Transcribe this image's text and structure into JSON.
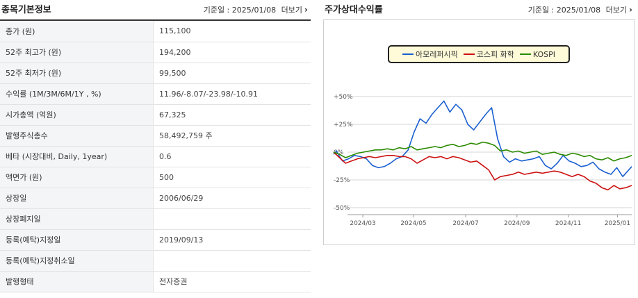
{
  "left_panel": {
    "title": "종목기본정보",
    "base_date_label": "기준일 : 2025/01/08",
    "more_label": "더보기",
    "rows": [
      {
        "label": "종가 (원)",
        "value": "115,100"
      },
      {
        "label": "52주 최고가 (원)",
        "value": "194,200"
      },
      {
        "label": "52주 최저가 (원)",
        "value": "99,500"
      },
      {
        "label": "수익률 (1M/3M/6M/1Y , %)",
        "value": "11.96/-8.07/-23.98/-10.91"
      },
      {
        "label": "시가총액 (억원)",
        "value": "67,325"
      },
      {
        "label": "발행주식총수",
        "value": "58,492,759 주"
      },
      {
        "label": "베타 (시장대비, Daily, 1year)",
        "value": "0.6"
      },
      {
        "label": "액면가 (원)",
        "value": "500"
      },
      {
        "label": "상장일",
        "value": "2006/06/29"
      },
      {
        "label": "상장폐지일",
        "value": ""
      },
      {
        "label": "등록(예탁)지정일",
        "value": "2019/09/13"
      },
      {
        "label": "등록(예탁)지정취소일",
        "value": ""
      },
      {
        "label": "발행형태",
        "value": "전자증권"
      }
    ]
  },
  "right_panel": {
    "title": "주가상대수익률",
    "base_date_label": "기준일 : 2025/01/08",
    "more_label": "더보기"
  },
  "chart_data": {
    "type": "line",
    "ylim": [
      -50,
      50
    ],
    "y_ticks": [
      50,
      25,
      0,
      -25,
      -50
    ],
    "y_tick_labels": [
      "+50%",
      "+25%",
      "0%",
      "-25%",
      "-50%"
    ],
    "x_tick_labels": [
      "2024/03",
      "2024/05",
      "2024/07",
      "2024/09",
      "2024/11",
      "2025/01"
    ],
    "x_tick_positions": [
      0.098,
      0.268,
      0.443,
      0.615,
      0.787,
      0.952
    ],
    "legend_position": "top-center",
    "series": [
      {
        "name": "아모레퍼시픽",
        "color": "#1a5fd0",
        "x": [
          0,
          0.01,
          0.02,
          0.03,
          0.05,
          0.07,
          0.09,
          0.11,
          0.13,
          0.15,
          0.17,
          0.19,
          0.21,
          0.23,
          0.25,
          0.27,
          0.29,
          0.31,
          0.33,
          0.35,
          0.37,
          0.39,
          0.41,
          0.43,
          0.45,
          0.47,
          0.49,
          0.51,
          0.53,
          0.55,
          0.57,
          0.59,
          0.61,
          0.63,
          0.65,
          0.67,
          0.69,
          0.71,
          0.73,
          0.75,
          0.77,
          0.79,
          0.81,
          0.83,
          0.85,
          0.87,
          0.89,
          0.91,
          0.93,
          0.95,
          0.97,
          1.0
        ],
        "y": [
          -2,
          1,
          -4,
          -8,
          -6,
          -3,
          -4,
          -6,
          -12,
          -14,
          -13,
          -10,
          -6,
          -4,
          2,
          18,
          30,
          26,
          34,
          40,
          46,
          36,
          43,
          38,
          25,
          20,
          27,
          34,
          40,
          12,
          -4,
          -9,
          -6,
          -8,
          -7,
          -6,
          -4,
          -12,
          -15,
          -10,
          -3,
          -8,
          -10,
          -13,
          -12,
          -9,
          -15,
          -18,
          -20,
          -14,
          -22,
          -13
        ]
      },
      {
        "name": "코스피 화학",
        "color": "#cc1111",
        "x": [
          0,
          0.02,
          0.04,
          0.06,
          0.08,
          0.1,
          0.12,
          0.14,
          0.16,
          0.18,
          0.2,
          0.22,
          0.24,
          0.26,
          0.28,
          0.3,
          0.32,
          0.34,
          0.36,
          0.38,
          0.4,
          0.42,
          0.44,
          0.46,
          0.48,
          0.5,
          0.52,
          0.54,
          0.56,
          0.58,
          0.6,
          0.62,
          0.64,
          0.66,
          0.68,
          0.7,
          0.72,
          0.74,
          0.76,
          0.78,
          0.8,
          0.82,
          0.84,
          0.86,
          0.88,
          0.9,
          0.92,
          0.94,
          0.96,
          0.98,
          1.0
        ],
        "y": [
          0,
          -5,
          -10,
          -8,
          -6,
          -5,
          -4,
          -5,
          -4,
          -3,
          -3,
          -4,
          -4,
          -6,
          -10,
          -7,
          -4,
          -5,
          -4,
          -6,
          -4,
          -5,
          -7,
          -9,
          -8,
          -12,
          -16,
          -25,
          -22,
          -21,
          -20,
          -18,
          -20,
          -19,
          -18,
          -19,
          -18,
          -17,
          -18,
          -20,
          -22,
          -20,
          -22,
          -26,
          -28,
          -32,
          -34,
          -30,
          -33,
          -32,
          -30
        ]
      },
      {
        "name": "KOSPI",
        "color": "#2a8a00",
        "x": [
          0,
          0.02,
          0.04,
          0.06,
          0.08,
          0.1,
          0.12,
          0.14,
          0.16,
          0.18,
          0.2,
          0.22,
          0.24,
          0.26,
          0.28,
          0.3,
          0.32,
          0.34,
          0.36,
          0.38,
          0.4,
          0.42,
          0.44,
          0.46,
          0.48,
          0.5,
          0.52,
          0.54,
          0.56,
          0.58,
          0.6,
          0.62,
          0.64,
          0.66,
          0.68,
          0.7,
          0.72,
          0.74,
          0.76,
          0.78,
          0.8,
          0.82,
          0.84,
          0.86,
          0.88,
          0.9,
          0.92,
          0.94,
          0.96,
          0.98,
          1.0
        ],
        "y": [
          0,
          -2,
          -5,
          -3,
          -1,
          0,
          1,
          2,
          2,
          3,
          2,
          4,
          3,
          5,
          2,
          3,
          4,
          5,
          4,
          6,
          7,
          5,
          6,
          8,
          7,
          9,
          8,
          6,
          1,
          2,
          0,
          1,
          -1,
          0,
          1,
          -2,
          -1,
          0,
          -2,
          -3,
          -1,
          -2,
          -4,
          -3,
          -6,
          -7,
          -5,
          -8,
          -6,
          -5,
          -3
        ]
      }
    ]
  }
}
